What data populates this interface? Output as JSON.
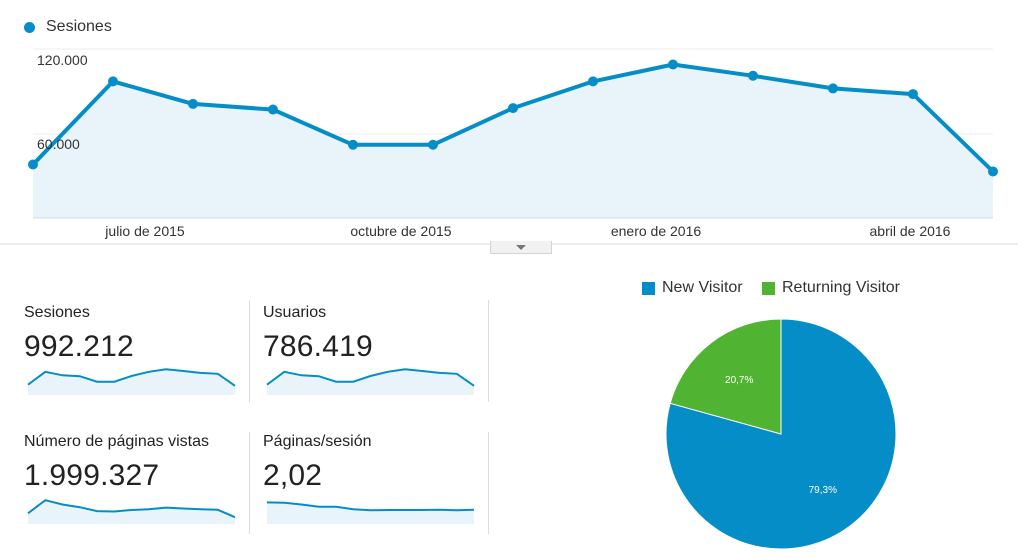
{
  "colors": {
    "primary": "#058dc7",
    "area": "#e8f3fa",
    "returning": "#50b432"
  },
  "chart_data": [
    {
      "type": "line",
      "series": [
        {
          "name": "Sesiones",
          "values": [
            38000,
            97000,
            81000,
            77000,
            52000,
            52000,
            78000,
            97000,
            109000,
            101000,
            92000,
            88000,
            33000
          ]
        }
      ],
      "x": [
        "2015-05",
        "2015-06",
        "2015-07",
        "2015-08",
        "2015-09",
        "2015-10",
        "2015-11",
        "2015-12",
        "2016-01",
        "2016-02",
        "2016-03",
        "2016-04",
        "2016-05"
      ],
      "yticks": [
        "120.000",
        "60.000"
      ],
      "ytick_values": [
        120000,
        60000
      ],
      "xticks": [
        {
          "label": "julio de 2015",
          "x": "2015-07"
        },
        {
          "label": "octubre de 2015",
          "x": "2015-10"
        },
        {
          "label": "enero de 2016",
          "x": "2016-01"
        },
        {
          "label": "abril de 2016",
          "x": "2016-04"
        }
      ],
      "ylim": [
        0,
        120000
      ],
      "grid": true
    },
    {
      "type": "pie",
      "categories": [
        "New Visitor",
        "Returning Visitor"
      ],
      "values": [
        79.3,
        20.7
      ],
      "labels": [
        "79,3%",
        "20,7%"
      ]
    }
  ],
  "metrics": [
    {
      "label": "Sesiones",
      "value": "992.212",
      "spark": [
        38,
        97,
        81,
        77,
        52,
        52,
        78,
        97,
        109,
        101,
        92,
        88,
        33
      ]
    },
    {
      "label": "Usuarios",
      "value": "786.419",
      "spark": [
        38,
        97,
        81,
        77,
        52,
        52,
        78,
        97,
        109,
        101,
        92,
        88,
        33
      ]
    },
    {
      "label": "Número de páginas vistas",
      "value": "1.999.327",
      "spark": [
        40,
        100,
        80,
        68,
        50,
        48,
        55,
        58,
        66,
        62,
        58,
        56,
        22
      ]
    },
    {
      "label": "Páginas/sesión",
      "value": "2,02",
      "spark": [
        90,
        88,
        80,
        70,
        70,
        58,
        54,
        55,
        55,
        55,
        56,
        54,
        56
      ]
    }
  ]
}
